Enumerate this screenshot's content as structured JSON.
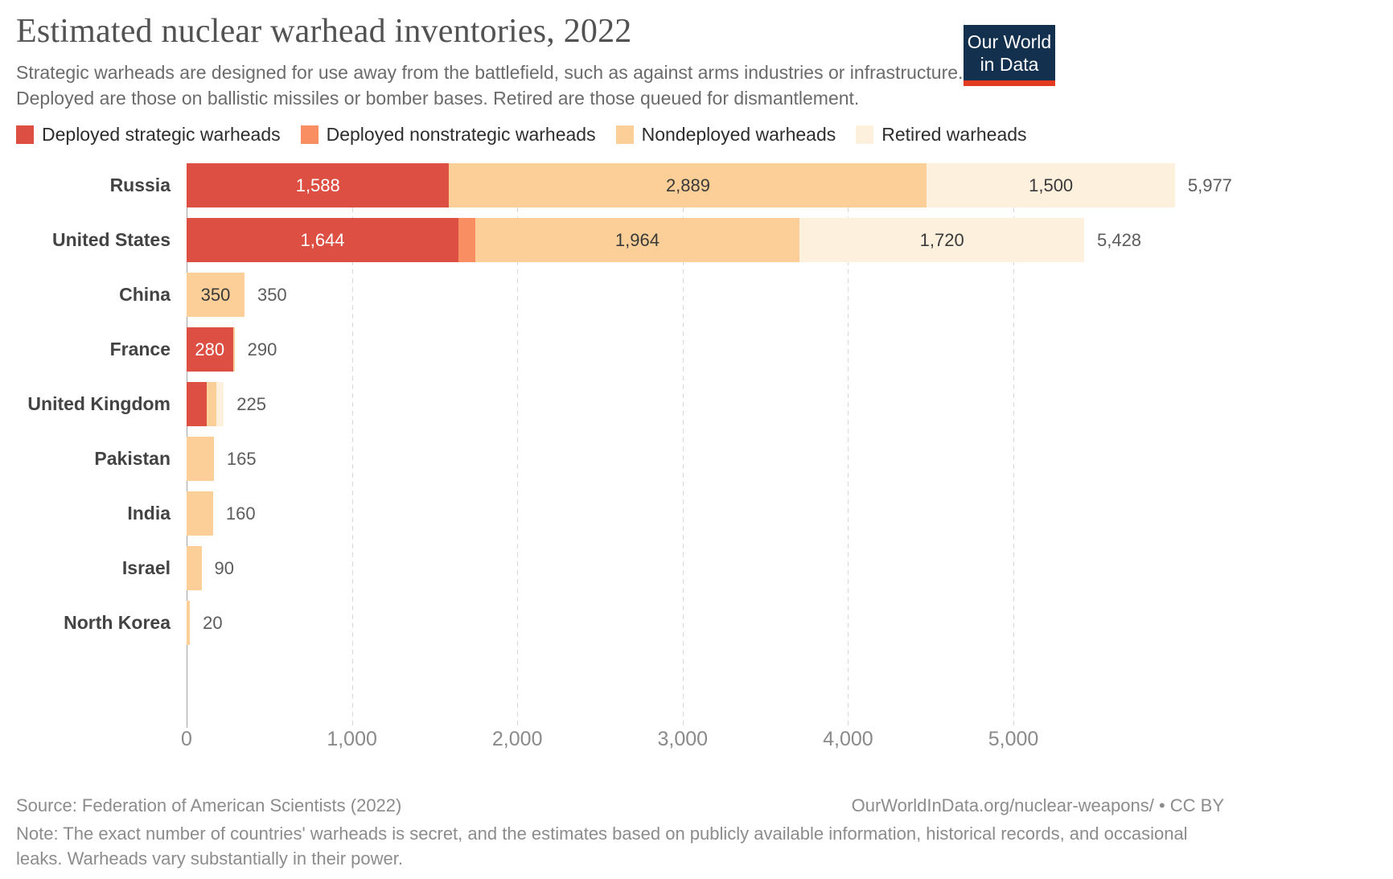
{
  "header": {
    "title": "Estimated nuclear warhead inventories, 2022",
    "subtitle_line1": "Strategic warheads are designed for use away from the battlefield, such as against arms industries or infrastructure.",
    "subtitle_line2": "Deployed are those on ballistic missiles or bomber bases. Retired are those queued for dismantlement.",
    "logo": {
      "line1": "Our World",
      "line2": "in Data",
      "bg_color": "#13304f",
      "stripe_color": "#e23b22"
    }
  },
  "legend": [
    {
      "key": "deployed_strategic",
      "label": "Deployed strategic warheads",
      "color": "#dd4f43"
    },
    {
      "key": "deployed_nonstrategic",
      "label": "Deployed nonstrategic warheads",
      "color": "#f98e62"
    },
    {
      "key": "nondeployed",
      "label": "Nondeployed warheads",
      "color": "#fbcf97"
    },
    {
      "key": "retired",
      "label": "Retired warheads",
      "color": "#fdf0dc"
    }
  ],
  "colors": {
    "deployed_strategic": "#dd4f43",
    "deployed_nonstrategic": "#f98e62",
    "nondeployed": "#fbcf97",
    "retired": "#fdf0dc",
    "label_on_dark": "#ffffff",
    "label_on_light": "#3a3a3a"
  },
  "chart_data": {
    "type": "bar",
    "orientation": "horizontal",
    "stacked": true,
    "title": "Estimated nuclear warhead inventories, 2022",
    "categories": [
      "Russia",
      "United States",
      "China",
      "France",
      "United Kingdom",
      "Pakistan",
      "India",
      "Israel",
      "North Korea"
    ],
    "series": [
      {
        "name": "Deployed strategic warheads",
        "color": "#dd4f43",
        "values": [
          1588,
          1644,
          0,
          280,
          120,
          0,
          0,
          0,
          0
        ]
      },
      {
        "name": "Deployed nonstrategic warheads",
        "color": "#f98e62",
        "values": [
          0,
          100,
          0,
          0,
          0,
          0,
          0,
          0,
          0
        ]
      },
      {
        "name": "Nondeployed warheads",
        "color": "#fbcf97",
        "values": [
          2889,
          1964,
          350,
          10,
          60,
          165,
          160,
          90,
          20
        ]
      },
      {
        "name": "Retired warheads",
        "color": "#fdf0dc",
        "values": [
          1500,
          1720,
          0,
          0,
          45,
          0,
          0,
          0,
          0
        ]
      }
    ],
    "totals": [
      5977,
      5428,
      350,
      290,
      225,
      165,
      160,
      90,
      20
    ],
    "xlim": [
      0,
      6100
    ],
    "x_ticks": [
      0,
      1000,
      2000,
      3000,
      4000,
      5000
    ],
    "x_tick_labels": [
      "0",
      "1,000",
      "2,000",
      "3,000",
      "4,000",
      "5,000"
    ],
    "grid": "dashed-vertical",
    "legend_position": "top"
  },
  "rows": [
    {
      "country": "Russia",
      "total_label": "5,977",
      "segments": [
        {
          "series": "deployed_strategic",
          "value": 1588,
          "label": "1,588"
        },
        {
          "series": "nondeployed",
          "value": 2889,
          "label": "2,889"
        },
        {
          "series": "retired",
          "value": 1500,
          "label": "1,500"
        }
      ]
    },
    {
      "country": "United States",
      "total_label": "5,428",
      "segments": [
        {
          "series": "deployed_strategic",
          "value": 1644,
          "label": "1,644"
        },
        {
          "series": "deployed_nonstrategic",
          "value": 100,
          "label": ""
        },
        {
          "series": "nondeployed",
          "value": 1964,
          "label": "1,964"
        },
        {
          "series": "retired",
          "value": 1720,
          "label": "1,720"
        }
      ]
    },
    {
      "country": "China",
      "total_label": "350",
      "segments": [
        {
          "series": "nondeployed",
          "value": 350,
          "label": "350"
        }
      ]
    },
    {
      "country": "France",
      "total_label": "290",
      "segments": [
        {
          "series": "deployed_strategic",
          "value": 280,
          "label": "280"
        },
        {
          "series": "nondeployed",
          "value": 10,
          "label": ""
        }
      ]
    },
    {
      "country": "United Kingdom",
      "total_label": "225",
      "segments": [
        {
          "series": "deployed_strategic",
          "value": 120,
          "label": ""
        },
        {
          "series": "nondeployed",
          "value": 60,
          "label": ""
        },
        {
          "series": "retired",
          "value": 45,
          "label": ""
        }
      ]
    },
    {
      "country": "Pakistan",
      "total_label": "165",
      "segments": [
        {
          "series": "nondeployed",
          "value": 165,
          "label": ""
        }
      ]
    },
    {
      "country": "India",
      "total_label": "160",
      "segments": [
        {
          "series": "nondeployed",
          "value": 160,
          "label": ""
        }
      ]
    },
    {
      "country": "Israel",
      "total_label": "90",
      "segments": [
        {
          "series": "nondeployed",
          "value": 90,
          "label": ""
        }
      ]
    },
    {
      "country": "North Korea",
      "total_label": "20",
      "segments": [
        {
          "series": "nondeployed",
          "value": 20,
          "label": ""
        }
      ]
    }
  ],
  "footer": {
    "source": "Source: Federation of American Scientists (2022)",
    "link": "OurWorldInData.org/nuclear-weapons/ • CC BY",
    "note": "Note: The exact number of countries' warheads is secret, and the estimates based on publicly available information, historical records, and occasional leaks. Warheads vary substantially in their power."
  }
}
